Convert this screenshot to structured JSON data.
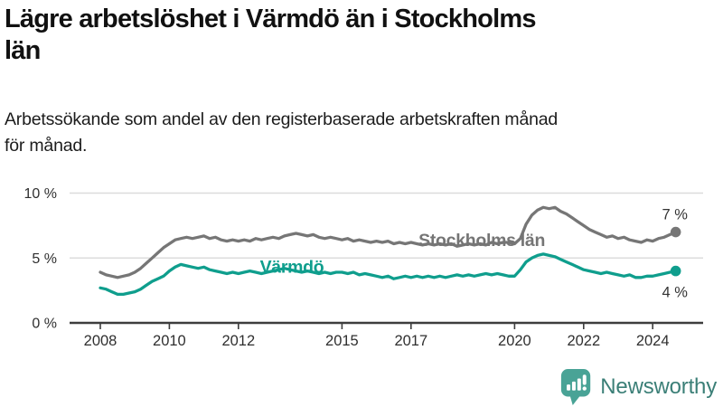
{
  "header": {
    "title": "Lägre arbetslöshet i Värmdö än i Stockholms län",
    "title_lines": [
      "Lägre arbetslöshet i Värmdö än i Stockholms",
      "län"
    ],
    "subtitle": "Arbetssökande som andel av den registerbaserade arbetskraften månad för månad.",
    "subtitle_lines": [
      "Arbetssökande som andel av den registerbaserade arbetskraften månad",
      "för månad."
    ]
  },
  "chart_data": {
    "type": "line",
    "title": "Lägre arbetslöshet i Värmdö än i Stockholms län",
    "xlabel": "",
    "ylabel": "",
    "x_start_year": 2008.0,
    "x_step_years": 0.166667,
    "x_axis_ticks": [
      2008,
      2010,
      2012,
      2015,
      2017,
      2020,
      2022,
      2024
    ],
    "y_axis_ticks": [
      {
        "value": 0,
        "label": "0 %"
      },
      {
        "value": 5,
        "label": "5 %"
      },
      {
        "value": 10,
        "label": "10 %"
      }
    ],
    "ylim": [
      0,
      10.5
    ],
    "grid": "horizontal",
    "legend_position": "inline-labels",
    "series": [
      {
        "name": "Stockholms län",
        "color": "#767676",
        "end_label": "7 %",
        "end_label_position": "above",
        "values": [
          3.9,
          3.7,
          3.6,
          3.5,
          3.6,
          3.7,
          3.9,
          4.2,
          4.6,
          5.0,
          5.4,
          5.8,
          6.1,
          6.4,
          6.5,
          6.6,
          6.5,
          6.6,
          6.7,
          6.5,
          6.6,
          6.4,
          6.3,
          6.4,
          6.3,
          6.4,
          6.3,
          6.5,
          6.4,
          6.5,
          6.6,
          6.5,
          6.7,
          6.8,
          6.9,
          6.8,
          6.7,
          6.8,
          6.6,
          6.5,
          6.6,
          6.5,
          6.4,
          6.5,
          6.3,
          6.4,
          6.3,
          6.2,
          6.3,
          6.2,
          6.3,
          6.1,
          6.2,
          6.1,
          6.2,
          6.1,
          6.0,
          6.1,
          6.0,
          6.1,
          6.0,
          6.1,
          5.9,
          6.0,
          6.1,
          6.0,
          6.1,
          6.0,
          6.2,
          6.1,
          6.2,
          6.2,
          6.1,
          6.5,
          7.6,
          8.3,
          8.7,
          8.9,
          8.8,
          8.9,
          8.6,
          8.4,
          8.1,
          7.8,
          7.5,
          7.2,
          7.0,
          6.8,
          6.6,
          6.7,
          6.5,
          6.6,
          6.4,
          6.3,
          6.2,
          6.4,
          6.3,
          6.5,
          6.6,
          6.8,
          7.0
        ]
      },
      {
        "name": "Värmdö",
        "color": "#0f9e8d",
        "end_label": "4 %",
        "end_label_position": "below",
        "values": [
          2.7,
          2.6,
          2.4,
          2.2,
          2.2,
          2.3,
          2.4,
          2.6,
          2.9,
          3.2,
          3.4,
          3.6,
          4.0,
          4.3,
          4.5,
          4.4,
          4.3,
          4.2,
          4.3,
          4.1,
          4.0,
          3.9,
          3.8,
          3.9,
          3.8,
          3.9,
          4.0,
          3.9,
          3.8,
          3.9,
          4.0,
          4.1,
          4.2,
          4.1,
          4.0,
          3.9,
          4.0,
          3.9,
          3.8,
          3.9,
          3.8,
          3.9,
          3.9,
          3.8,
          3.9,
          3.7,
          3.8,
          3.7,
          3.6,
          3.5,
          3.6,
          3.4,
          3.5,
          3.6,
          3.5,
          3.6,
          3.5,
          3.6,
          3.5,
          3.6,
          3.5,
          3.6,
          3.7,
          3.6,
          3.7,
          3.6,
          3.7,
          3.8,
          3.7,
          3.8,
          3.7,
          3.6,
          3.6,
          4.1,
          4.7,
          5.0,
          5.2,
          5.3,
          5.2,
          5.1,
          4.9,
          4.7,
          4.5,
          4.3,
          4.1,
          4.0,
          3.9,
          3.8,
          3.9,
          3.8,
          3.7,
          3.6,
          3.7,
          3.5,
          3.5,
          3.6,
          3.6,
          3.7,
          3.8,
          3.9,
          4.0
        ]
      }
    ],
    "series_labels": [
      {
        "text": "Stockholms län",
        "x": 2019.05,
        "y": 6.35,
        "color": "#757575"
      },
      {
        "text": "Värmdö",
        "x": 2013.55,
        "y": 4.27,
        "color": "#0f9e8d"
      }
    ]
  },
  "colors": {
    "axis": "#3d3d3d",
    "gridline": "#dcdcdc",
    "tick_text": "#2f2f2f",
    "annotation_text": "#333333"
  },
  "footer": {
    "brand": "Newsworthy",
    "brand_text_color": "#3b7f77",
    "logo_bubble_color": "#49a396",
    "logo_icon": "bar-chart-exclamation-bubble"
  }
}
